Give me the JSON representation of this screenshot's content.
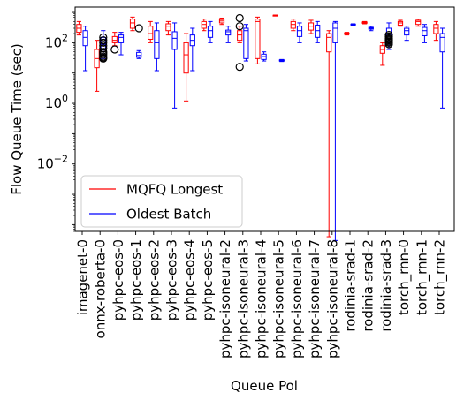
{
  "chart_data": {
    "type": "boxplot",
    "title": "",
    "xlabel": "Queue Pol",
    "ylabel": "Flow Queue Time (sec)",
    "yscale": "log",
    "ylim": [
      6e-05,
      1500
    ],
    "yticks": [
      {
        "value": 0.01,
        "base": "10",
        "exp": "−2"
      },
      {
        "value": 1,
        "base": "10",
        "exp": "0"
      },
      {
        "value": 100,
        "base": "10",
        "exp": "2"
      }
    ],
    "grid": false,
    "legend_position": "lower-left",
    "categories": [
      "imagenet-0",
      "onnx-roberta-0",
      "pyhpc-eos-0",
      "pyhpc-eos-1",
      "pyhpc-eos-2",
      "pyhpc-eos-3",
      "pyhpc-eos-4",
      "pyhpc-eos-5",
      "pyhpc-isoneural-2",
      "pyhpc-isoneural-3",
      "pyhpc-isoneural-4",
      "pyhpc-isoneural-5",
      "pyhpc-isoneural-6",
      "pyhpc-isoneural-7",
      "pyhpc-isoneural-8",
      "rodinia-srad-1",
      "rodinia-srad-2",
      "rodinia-srad-3",
      "torch_rnn-0",
      "torch_rnn-1",
      "torch_rnn-2"
    ],
    "series": [
      {
        "name": "MQFQ Longest",
        "color": "#ff0000",
        "boxes": [
          {
            "whislo": 180,
            "q1": 220,
            "med": 300,
            "q3": 400,
            "whishi": 500,
            "fliers": []
          },
          {
            "whislo": 2.5,
            "q1": 15,
            "med": 30,
            "q3": 60,
            "whishi": 120,
            "fliers": []
          },
          {
            "whislo": 80,
            "q1": 100,
            "med": 120,
            "q3": 160,
            "whishi": 220,
            "fliers": [
              60
            ]
          },
          {
            "whislo": 250,
            "q1": 300,
            "med": 450,
            "q3": 600,
            "whishi": 700,
            "fliers": []
          },
          {
            "whislo": 100,
            "q1": 130,
            "med": 200,
            "q3": 350,
            "whishi": 500,
            "fliers": []
          },
          {
            "whislo": 180,
            "q1": 250,
            "med": 350,
            "q3": 420,
            "whishi": 500,
            "fliers": []
          },
          {
            "whislo": 1.2,
            "q1": 10,
            "med": 40,
            "q3": 100,
            "whishi": 200,
            "fliers": []
          },
          {
            "whislo": 250,
            "q1": 300,
            "med": 400,
            "q3": 500,
            "whishi": 600,
            "fliers": []
          },
          {
            "whislo": 400,
            "q1": 450,
            "med": 520,
            "q3": 580,
            "whishi": 650,
            "fliers": []
          },
          {
            "whislo": 100,
            "q1": 120,
            "med": 180,
            "q3": 250,
            "whishi": 350,
            "fliers": [
              650,
              350,
              16
            ]
          },
          {
            "whislo": 20,
            "q1": 30,
            "med": 500,
            "q3": 600,
            "whishi": 700,
            "fliers": []
          },
          {
            "whislo": 780,
            "q1": 790,
            "med": 800,
            "q3": 810,
            "whishi": 820,
            "fliers": []
          },
          {
            "whislo": 250,
            "q1": 300,
            "med": 400,
            "q3": 500,
            "whishi": 600,
            "fliers": []
          },
          {
            "whislo": 200,
            "q1": 260,
            "med": 350,
            "q3": 450,
            "whishi": 550,
            "fliers": []
          },
          {
            "whislo": 4e-05,
            "q1": 50,
            "med": 150,
            "q3": 200,
            "whishi": 250,
            "fliers": []
          },
          {
            "whislo": 180,
            "q1": 190,
            "med": 200,
            "q3": 210,
            "whishi": 220,
            "fliers": []
          },
          {
            "whislo": 420,
            "q1": 440,
            "med": 460,
            "q3": 480,
            "whishi": 500,
            "fliers": []
          },
          {
            "whislo": 18,
            "q1": 45,
            "med": 60,
            "q3": 80,
            "whishi": 100,
            "fliers": []
          },
          {
            "whislo": 350,
            "q1": 380,
            "med": 450,
            "q3": 500,
            "whishi": 550,
            "fliers": []
          },
          {
            "whislo": 350,
            "q1": 400,
            "med": 500,
            "q3": 550,
            "whishi": 600,
            "fliers": []
          },
          {
            "whislo": 120,
            "q1": 200,
            "med": 300,
            "q3": 400,
            "whishi": 500,
            "fliers": []
          }
        ]
      },
      {
        "name": "Oldest Batch",
        "color": "#0000ff",
        "boxes": [
          {
            "whislo": 12,
            "q1": 80,
            "med": 150,
            "q3": 250,
            "whishi": 350,
            "fliers": []
          },
          {
            "whislo": 30,
            "q1": 60,
            "med": 90,
            "q3": 150,
            "whishi": 250,
            "fliers": [
              150,
              120,
              100,
              80,
              65,
              50,
              45,
              40,
              35,
              32,
              30
            ]
          },
          {
            "whislo": 40,
            "q1": 100,
            "med": 150,
            "q3": 180,
            "whishi": 220,
            "fliers": []
          },
          {
            "whislo": 30,
            "q1": 33,
            "med": 38,
            "q3": 48,
            "whishi": 55,
            "fliers": [
              300
            ]
          },
          {
            "whislo": 12,
            "q1": 30,
            "med": 100,
            "q3": 250,
            "whishi": 450,
            "fliers": []
          },
          {
            "whislo": 0.7,
            "q1": 60,
            "med": 140,
            "q3": 230,
            "whishi": 450,
            "fliers": []
          },
          {
            "whislo": 12,
            "q1": 80,
            "med": 120,
            "q3": 180,
            "whishi": 300,
            "fliers": []
          },
          {
            "whislo": 100,
            "q1": 150,
            "med": 250,
            "q3": 350,
            "whishi": 500,
            "fliers": []
          },
          {
            "whislo": 100,
            "q1": 180,
            "med": 230,
            "q3": 260,
            "whishi": 350,
            "fliers": []
          },
          {
            "whislo": 25,
            "q1": 30,
            "med": 250,
            "q3": 300,
            "whishi": 400,
            "fliers": []
          },
          {
            "whislo": 25,
            "q1": 28,
            "med": 35,
            "q3": 42,
            "whishi": 50,
            "fliers": []
          },
          {
            "whislo": 24,
            "q1": 25,
            "med": 26,
            "q3": 27,
            "whishi": 28,
            "fliers": []
          },
          {
            "whislo": 100,
            "q1": 160,
            "med": 250,
            "q3": 350,
            "whishi": 450,
            "fliers": []
          },
          {
            "whislo": 100,
            "q1": 150,
            "med": 250,
            "q3": 380,
            "whishi": 500,
            "fliers": []
          },
          {
            "whislo": 3e-05,
            "q1": 100,
            "med": 300,
            "q3": 450,
            "whishi": 500,
            "fliers": []
          },
          {
            "whislo": 380,
            "q1": 390,
            "med": 400,
            "q3": 410,
            "whishi": 420,
            "fliers": []
          },
          {
            "whislo": 250,
            "q1": 280,
            "med": 300,
            "q3": 320,
            "whishi": 350,
            "fliers": []
          },
          {
            "whislo": 60,
            "q1": 130,
            "med": 200,
            "q3": 300,
            "whishi": 450,
            "fliers": [
              180,
              160,
              140,
              130,
              120,
              110,
              100,
              90
            ]
          },
          {
            "whislo": 120,
            "q1": 180,
            "med": 250,
            "q3": 300,
            "whishi": 350,
            "fliers": []
          },
          {
            "whislo": 100,
            "q1": 170,
            "med": 250,
            "q3": 320,
            "whishi": 400,
            "fliers": []
          },
          {
            "whislo": 0.7,
            "q1": 50,
            "med": 150,
            "q3": 200,
            "whishi": 300,
            "fliers": []
          }
        ]
      }
    ]
  }
}
